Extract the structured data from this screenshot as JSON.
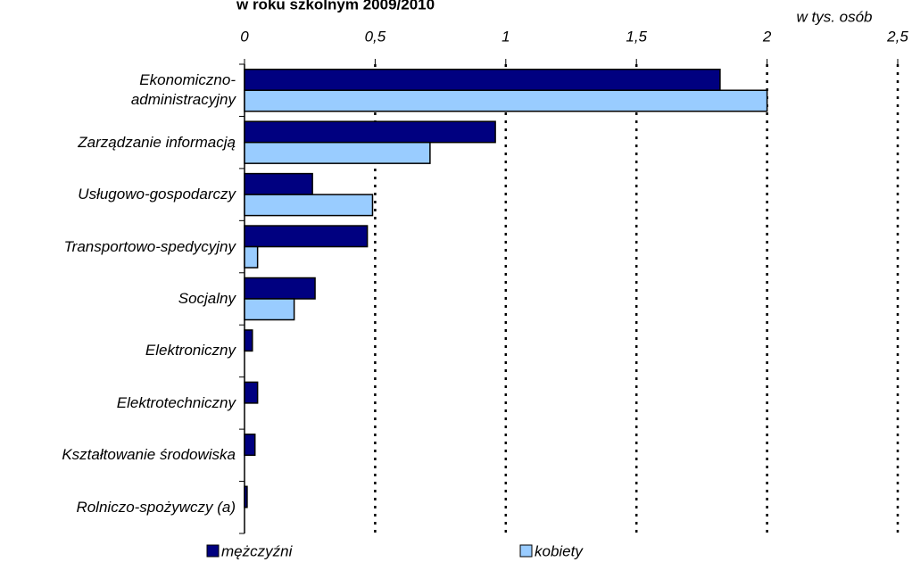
{
  "chart_data": {
    "type": "bar",
    "orientation": "horizontal",
    "title": "w roku szkolnym 2009/2010",
    "unit_label": "w tys. osób",
    "categories": [
      "Ekonomiczno-\nadministracyjny",
      "Zarządzanie informacją",
      "Usługowo-gospodarczy",
      "Transportowo-spedycyjny",
      "Socjalny",
      "Elektroniczny",
      "Elektrotechniczny",
      "Kształtowanie środowiska",
      "Rolniczo-spożywczy (a)"
    ],
    "series": [
      {
        "name": "mężczyźni",
        "color": "#000080",
        "values": [
          1.82,
          0.96,
          0.26,
          0.47,
          0.27,
          0.03,
          0.05,
          0.04,
          0.01
        ]
      },
      {
        "name": "kobiety",
        "color": "#99ccff",
        "values": [
          2.0,
          0.71,
          0.49,
          0.05,
          0.19,
          0,
          0,
          0,
          0
        ]
      }
    ],
    "xlim": [
      0,
      2.5
    ],
    "xticks": [
      0,
      {
        "value": 0.5,
        "label": "0,5"
      },
      1,
      {
        "value": 1.5,
        "label": "1,5"
      },
      2,
      {
        "value": 2.5,
        "label": "2,5"
      }
    ],
    "grid": true,
    "legend": "bottom"
  }
}
